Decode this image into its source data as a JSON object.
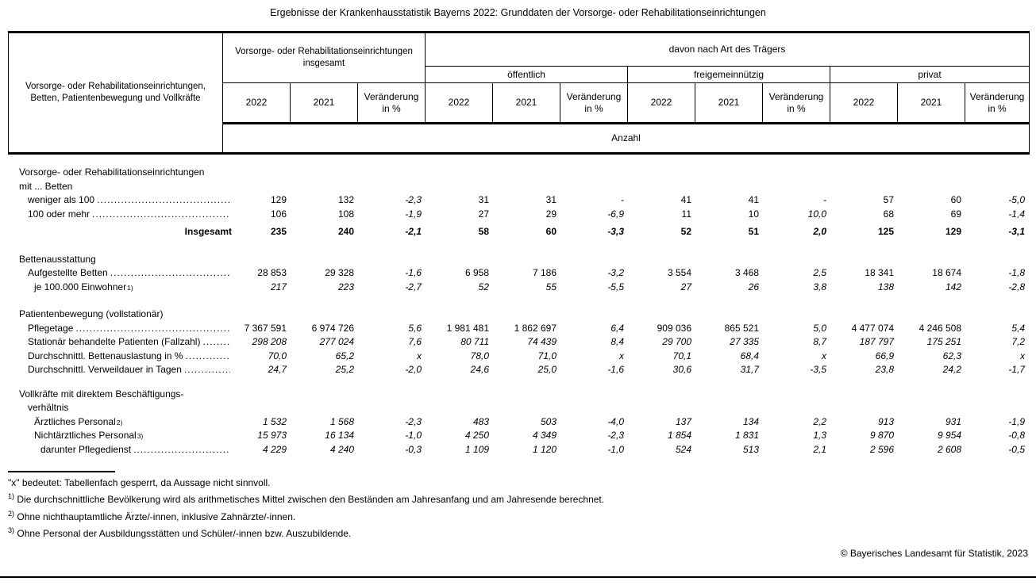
{
  "title": "Ergebnisse der Krankenhausstatistik Bayerns 2022: Grunddaten der Vorsorge- oder Rehabilitationseinrichtungen",
  "colors": {
    "text": "#000000",
    "background": "#ffffff",
    "border": "#000000"
  },
  "table": {
    "stub_header": "Vorsorge- oder Rehabilitationseinrichtungen,\nBetten, Patientenbewegung und Vollkräfte",
    "group_total": "Vorsorge- oder Rehabilitationseinrichtungen\ninsgesamt",
    "group_carrier": "davon nach Art des Trägers",
    "subgroups": [
      "öffentlich",
      "freigemeinnützig",
      "privat"
    ],
    "year_cols": [
      "2022",
      "2021",
      "Veränderung\nin %"
    ],
    "unit_row": "Anzahl",
    "rows": [
      {
        "label": "Vorsorge- oder Rehabilitationseinrichtungen",
        "indent": 0,
        "type": "heading"
      },
      {
        "label": "mit ... Betten",
        "indent": 0,
        "type": "heading"
      },
      {
        "label": "weniger als 100",
        "indent": 1,
        "dots": true,
        "values": [
          "129",
          "132",
          "-2,3",
          "31",
          "31",
          "-",
          "41",
          "41",
          "-",
          "57",
          "60",
          "-5,0"
        ]
      },
      {
        "label": "100 oder mehr",
        "indent": 1,
        "dots": true,
        "values": [
          "106",
          "108",
          "-1,9",
          "27",
          "29",
          "-6,9",
          "11",
          "10",
          "10,0",
          "68",
          "69",
          "-1,4"
        ]
      },
      {
        "label": "Insgesamt",
        "type": "total",
        "bold": true,
        "gap": 5,
        "values": [
          "235",
          "240",
          "-2,1",
          "58",
          "60",
          "-3,3",
          "52",
          "51",
          "2,0",
          "125",
          "129",
          "-3,1"
        ]
      },
      {
        "label": "Bettenausstattung",
        "indent": 0,
        "type": "heading",
        "gap": 17
      },
      {
        "label": "Aufgestellte Betten",
        "indent": 1,
        "dots": true,
        "values": [
          "28 853",
          "29 328",
          "-1,6",
          "6 958",
          "7 186",
          "-3,2",
          "3 554",
          "3 468",
          "2,5",
          "18 341",
          "18 674",
          "-1,8"
        ]
      },
      {
        "label": "je 100.000 Einwohner",
        "sup": "1)",
        "indent": 2,
        "italic": true,
        "values": [
          "217",
          "223",
          "-2,7",
          "52",
          "55",
          "-5,5",
          "27",
          "26",
          "3,8",
          "138",
          "142",
          "-2,8"
        ]
      },
      {
        "label": "Patientenbewegung (vollstationär)",
        "indent": 0,
        "type": "heading",
        "gap": 17
      },
      {
        "label": "Pflegetage",
        "indent": 1,
        "dots": true,
        "values": [
          "7 367 591",
          "6 974 726",
          "5,6",
          "1 981 481",
          "1 862 697",
          "6,4",
          "909 036",
          "865 521",
          "5,0",
          "4 477 074",
          "4 246 508",
          "5,4"
        ]
      },
      {
        "label": "Stationär behandelte Patienten (Fallzahl)",
        "indent": 1,
        "dots": true,
        "italic": true,
        "values": [
          "298 208",
          "277 024",
          "7,6",
          "80 711",
          "74 439",
          "8,4",
          "29 700",
          "27 335",
          "8,7",
          "187 797",
          "175 251",
          "7,2"
        ]
      },
      {
        "label": "Durchschnittl. Bettenauslastung in %",
        "indent": 1,
        "dots": true,
        "italic": true,
        "values": [
          "70,0",
          "65,2",
          "x",
          "78,0",
          "71,0",
          "x",
          "70,1",
          "68,4",
          "x",
          "66,9",
          "62,3",
          "x"
        ]
      },
      {
        "label": "Durchschnittl. Verweildauer in Tagen",
        "indent": 1,
        "dots": true,
        "italic": true,
        "values": [
          "24,7",
          "25,2",
          "-2,0",
          "24,6",
          "25,0",
          "-1,6",
          "30,6",
          "31,7",
          "-3,5",
          "23,8",
          "24,2",
          "-1,7"
        ]
      },
      {
        "label": "Vollkräfte mit direktem Beschäftigungs-",
        "indent": 0,
        "type": "heading",
        "gap": 13
      },
      {
        "label": "verhältnis",
        "indent": 1,
        "type": "heading"
      },
      {
        "label": "Ärztliches Personal",
        "sup": "2)",
        "indent": 2,
        "italic": true,
        "values": [
          "1 532",
          "1 568",
          "-2,3",
          "483",
          "503",
          "-4,0",
          "137",
          "134",
          "2,2",
          "913",
          "931",
          "-1,9"
        ]
      },
      {
        "label": "Nichtärztliches Personal",
        "sup": "3)",
        "indent": 2,
        "italic": true,
        "values": [
          "15 973",
          "16 134",
          "-1,0",
          "4 250",
          "4 349",
          "-2,3",
          "1 854",
          "1 831",
          "1,3",
          "9 870",
          "9 954",
          "-0,8"
        ]
      },
      {
        "label": "darunter Pflegedienst",
        "indent": 3,
        "dots": true,
        "italic": true,
        "values": [
          "4 229",
          "4 240",
          "-0,3",
          "1 109",
          "1 120",
          "-1,0",
          "524",
          "513",
          "2,1",
          "2 596",
          "2 608",
          "-0,5"
        ]
      }
    ]
  },
  "footnotes": [
    {
      "marker": "",
      "text": "\"x\" bedeutet: Tabellenfach gesperrt, da Aussage nicht sinnvoll."
    },
    {
      "marker": "1)",
      "text": "Die durchschnittliche Bevölkerung wird als arithmetisches Mittel zwischen den Beständen am Jahresanfang und am Jahresende berechnet."
    },
    {
      "marker": "2)",
      "text": "Ohne nichthauptamtliche Ärzte/-innen, inklusive Zahnärzte/-innen."
    },
    {
      "marker": "3)",
      "text": "Ohne Personal der Ausbildungsstätten und Schüler/-innen bzw. Auszubildende."
    }
  ],
  "copyright": "© Bayerisches Landesamt für Statistik, 2023"
}
